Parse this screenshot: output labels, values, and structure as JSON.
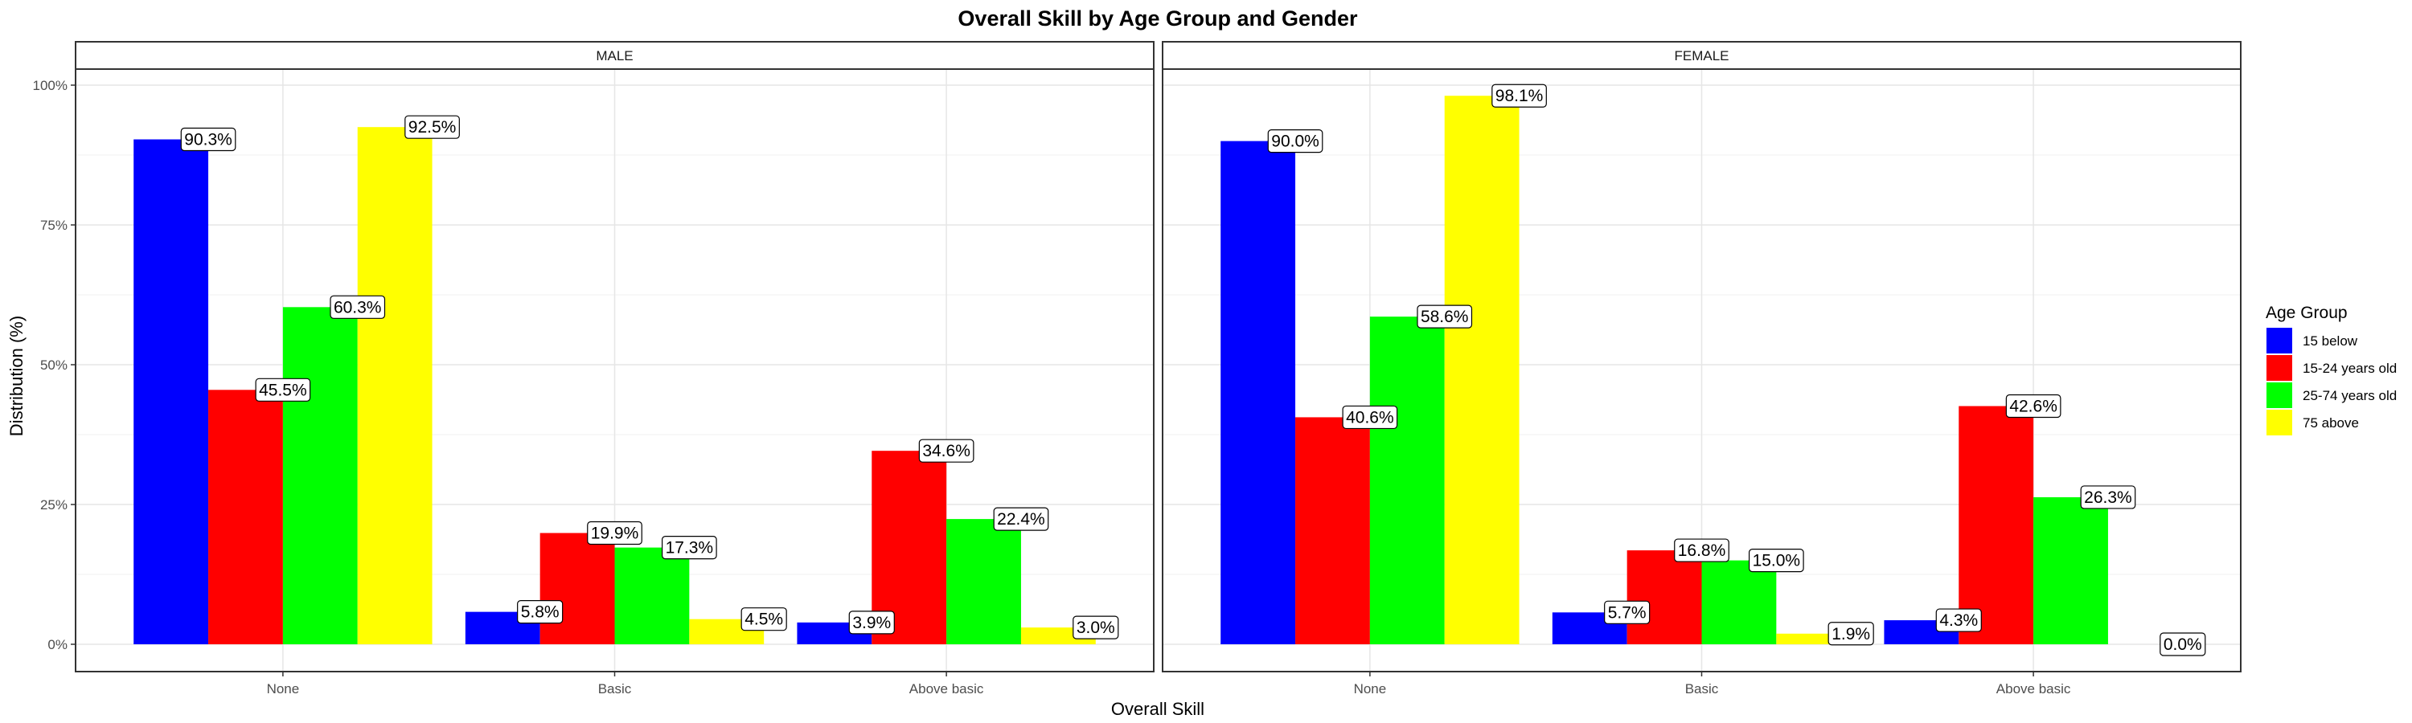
{
  "chart_data": {
    "type": "bar",
    "title": "Overall Skill by Age Group and Gender",
    "xlabel": "Overall Skill",
    "ylabel": "Distribution (%)",
    "ylim": [
      0,
      100
    ],
    "yticks": [
      "0%",
      "25%",
      "50%",
      "75%",
      "100%"
    ],
    "categories": [
      "None",
      "Basic",
      "Above basic"
    ],
    "legend": {
      "title": "Age Group",
      "placement": "right",
      "entries": [
        {
          "name": "15 below",
          "color": "#0000ff"
        },
        {
          "name": "15-24 years old",
          "color": "#ff0000"
        },
        {
          "name": "25-74 years old",
          "color": "#00ff00"
        },
        {
          "name": "75 above",
          "color": "#ffff00"
        }
      ]
    },
    "grid": true,
    "panels": [
      {
        "label": "MALE",
        "series": [
          {
            "name": "15 below",
            "values": [
              90.3,
              5.8,
              3.9
            ]
          },
          {
            "name": "15-24 years old",
            "values": [
              45.5,
              19.9,
              34.6
            ]
          },
          {
            "name": "25-74 years old",
            "values": [
              60.3,
              17.3,
              22.4
            ]
          },
          {
            "name": "75 above",
            "values": [
              92.5,
              4.5,
              3.0
            ]
          }
        ]
      },
      {
        "label": "FEMALE",
        "series": [
          {
            "name": "15 below",
            "values": [
              90.0,
              5.7,
              4.3
            ]
          },
          {
            "name": "15-24 years old",
            "values": [
              40.6,
              16.8,
              42.6
            ]
          },
          {
            "name": "25-74 years old",
            "values": [
              58.6,
              15.0,
              26.3
            ]
          },
          {
            "name": "75 above",
            "values": [
              98.1,
              1.9,
              0.0
            ]
          }
        ]
      }
    ]
  }
}
